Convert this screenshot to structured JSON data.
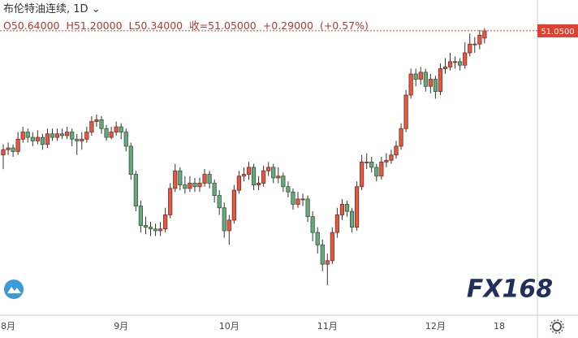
{
  "header": {
    "title": "布伦特油连续, 1D",
    "quote": [
      "O50.64000",
      "H51.20000",
      "L50.34000",
      "收=51.05000",
      "+0.29000",
      "(+0.57%)"
    ]
  },
  "watermark": "FX168",
  "chart_data": {
    "type": "candlestick",
    "categories": [
      null,
      "8月",
      null,
      null,
      null,
      null,
      null,
      null,
      null,
      null,
      null,
      null,
      null,
      null,
      null,
      null,
      null,
      null,
      null,
      null,
      null,
      null,
      null,
      null,
      "9月",
      null,
      null,
      null,
      null,
      null,
      null,
      null,
      null,
      null,
      null,
      null,
      null,
      null,
      null,
      null,
      null,
      null,
      null,
      null,
      null,
      null,
      "10月",
      null,
      null,
      null,
      null,
      null,
      null,
      null,
      null,
      null,
      null,
      null,
      null,
      null,
      null,
      null,
      null,
      null,
      null,
      null,
      "11月",
      null,
      null,
      null,
      null,
      null,
      null,
      null,
      null,
      null,
      null,
      null,
      null,
      null,
      null,
      null,
      null,
      null,
      null,
      null,
      null,
      null,
      "12月",
      null,
      null,
      null,
      null,
      null,
      null,
      null,
      null,
      null,
      null,
      null,
      null,
      "18"
    ],
    "open": [
      44.0,
      44.3,
      44.4,
      44.2,
      44.9,
      45.3,
      45.0,
      44.8,
      45.0,
      44.6,
      45.2,
      45.0,
      45.2,
      45.1,
      45.3,
      44.9,
      44.8,
      44.9,
      45.3,
      45.9,
      46.0,
      45.5,
      45.0,
      45.3,
      45.6,
      45.3,
      44.5,
      42.9,
      41.1,
      40.0,
      39.9,
      39.8,
      39.7,
      39.8,
      40.6,
      42.1,
      43.1,
      42.3,
      42.1,
      42.4,
      42.2,
      42.4,
      42.9,
      42.4,
      41.7,
      41.0,
      39.7,
      40.3,
      42.0,
      42.8,
      42.9,
      43.3,
      42.3,
      42.4,
      43.1,
      43.3,
      42.7,
      42.8,
      42.2,
      41.9,
      41.2,
      41.5,
      41.5,
      40.5,
      39.6,
      38.9,
      37.8,
      38.0,
      39.6,
      40.6,
      41.2,
      40.8,
      39.9,
      42.2,
      43.6,
      43.6,
      43.3,
      42.8,
      43.6,
      43.7,
      44.0,
      44.5,
      45.5,
      47.4,
      48.6,
      48.3,
      48.7,
      47.9,
      48.3,
      47.6,
      48.9,
      49.0,
      49.3,
      49.3,
      49.1,
      49.8,
      50.3,
      50.3,
      50.64,
      null,
      null,
      null
    ],
    "high": [
      44.6,
      44.7,
      44.6,
      45.3,
      45.6,
      45.5,
      45.3,
      45.4,
      45.2,
      45.5,
      45.5,
      45.5,
      45.5,
      45.6,
      45.5,
      45.2,
      45.3,
      45.6,
      46.2,
      46.3,
      46.2,
      45.7,
      45.6,
      45.9,
      45.8,
      45.5,
      44.7,
      43.1,
      41.4,
      40.5,
      40.2,
      40.1,
      40.2,
      41.0,
      42.4,
      43.5,
      43.3,
      42.8,
      42.8,
      42.7,
      42.7,
      43.2,
      43.1,
      42.6,
      42.0,
      41.3,
      40.6,
      42.3,
      43.1,
      43.3,
      43.6,
      43.5,
      42.8,
      43.4,
      43.6,
      43.5,
      43.3,
      43.0,
      42.5,
      42.1,
      41.9,
      41.8,
      41.7,
      40.8,
      39.9,
      39.2,
      38.4,
      39.9,
      41.0,
      41.5,
      41.4,
      41.0,
      42.5,
      44.0,
      44.1,
      43.9,
      43.5,
      43.9,
      44.1,
      44.3,
      44.8,
      45.8,
      47.7,
      48.9,
      48.9,
      49.0,
      48.9,
      48.6,
      48.5,
      49.2,
      49.5,
      49.8,
      49.6,
      49.5,
      50.4,
      50.9,
      50.7,
      51.1,
      51.2,
      null,
      null,
      null
    ],
    "low": [
      43.2,
      44.0,
      43.9,
      44.0,
      44.7,
      44.7,
      44.5,
      44.6,
      44.3,
      44.4,
      44.8,
      44.8,
      44.9,
      44.9,
      44.5,
      44.0,
      44.3,
      44.7,
      45.1,
      45.6,
      45.2,
      44.8,
      44.9,
      45.1,
      44.9,
      44.2,
      42.6,
      40.8,
      39.6,
      39.5,
      39.4,
      39.4,
      39.4,
      39.6,
      40.4,
      41.9,
      42.0,
      41.8,
      41.9,
      41.9,
      41.9,
      42.2,
      42.1,
      41.3,
      40.6,
      39.3,
      38.9,
      40.1,
      41.8,
      42.5,
      42.6,
      42.0,
      42.0,
      42.2,
      42.8,
      42.4,
      42.4,
      41.9,
      41.6,
      40.9,
      41.0,
      41.1,
      40.2,
      39.1,
      38.4,
      37.4,
      36.6,
      37.8,
      39.3,
      40.3,
      40.5,
      39.6,
      39.7,
      42.0,
      43.2,
      43.0,
      42.5,
      42.6,
      43.3,
      43.5,
      43.8,
      44.3,
      45.3,
      47.2,
      47.9,
      48.0,
      47.6,
      47.5,
      47.2,
      47.4,
      48.6,
      48.8,
      48.9,
      48.8,
      48.9,
      49.6,
      49.8,
      50.0,
      50.34,
      null,
      null,
      null
    ],
    "close": [
      44.3,
      44.4,
      44.2,
      44.9,
      45.3,
      45.0,
      44.8,
      45.0,
      44.6,
      45.2,
      45.0,
      45.2,
      45.1,
      45.3,
      44.9,
      44.8,
      44.9,
      45.3,
      45.9,
      46.0,
      45.5,
      45.0,
      45.3,
      45.6,
      45.3,
      44.5,
      42.9,
      41.1,
      40.0,
      39.9,
      39.8,
      39.7,
      39.8,
      40.6,
      42.1,
      43.1,
      42.3,
      42.1,
      42.4,
      42.2,
      42.4,
      42.9,
      42.4,
      41.7,
      41.0,
      39.7,
      40.3,
      42.0,
      42.8,
      42.9,
      43.3,
      42.3,
      42.4,
      43.1,
      43.3,
      42.7,
      42.8,
      42.2,
      41.9,
      41.2,
      41.5,
      41.5,
      40.5,
      39.6,
      38.9,
      37.8,
      38.0,
      39.6,
      40.6,
      41.2,
      40.8,
      39.9,
      42.2,
      43.6,
      43.6,
      43.3,
      42.8,
      43.6,
      43.7,
      44.0,
      44.5,
      45.5,
      47.4,
      48.6,
      48.3,
      48.7,
      47.9,
      48.3,
      47.6,
      48.9,
      49.0,
      49.3,
      49.3,
      49.1,
      49.8,
      50.3,
      50.3,
      50.8,
      51.05,
      null,
      null,
      null
    ],
    "up_color": "#e25a43",
    "down_color": "#6aa77c",
    "ylim": [
      34.9,
      52.8
    ],
    "last_price": {
      "value": 51.05,
      "label": "51.0500"
    },
    "last_price_color": "#e0402f"
  }
}
